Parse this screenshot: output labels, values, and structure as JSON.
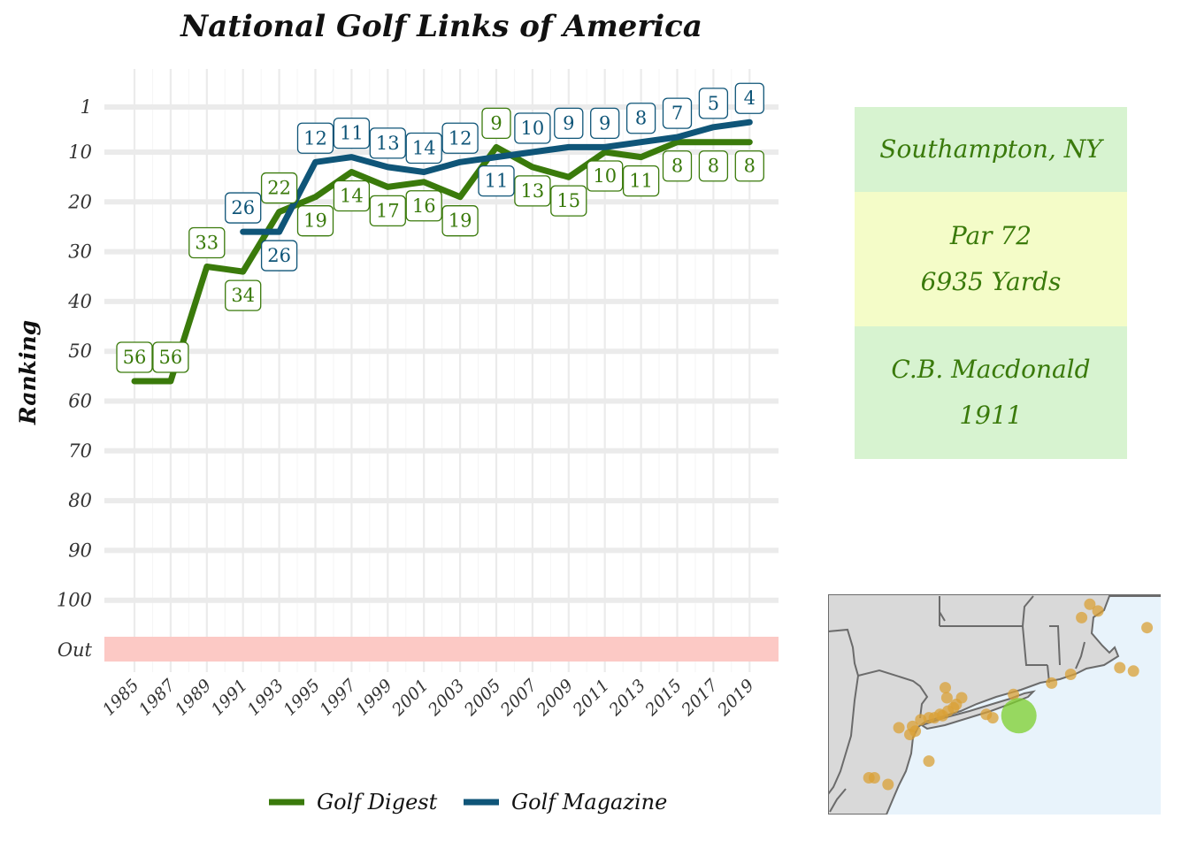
{
  "chart_data": {
    "type": "line",
    "title": "National Golf Links of America",
    "ylabel": "Ranking",
    "xlabel": "",
    "x_ticks": [
      "1985",
      "1987",
      "1989",
      "1991",
      "1993",
      "1995",
      "1997",
      "1999",
      "2001",
      "2003",
      "2005",
      "2007",
      "2009",
      "2011",
      "2013",
      "2015",
      "2017",
      "2019"
    ],
    "y_ticks": [
      1,
      10,
      20,
      30,
      40,
      50,
      60,
      70,
      80,
      90,
      100
    ],
    "y_out_label": "Out",
    "y_reversed": true,
    "grid": true,
    "legend_position": "bottom",
    "series": [
      {
        "name": "Golf Digest",
        "color": "#3a7a0b",
        "x": [
          1985,
          1987,
          1989,
          1991,
          1993,
          1995,
          1997,
          1999,
          2001,
          2003,
          2005,
          2007,
          2009,
          2011,
          2013,
          2015,
          2017,
          2019
        ],
        "values": [
          56,
          56,
          33,
          34,
          22,
          19,
          14,
          17,
          16,
          19,
          9,
          13,
          15,
          10,
          11,
          8,
          8,
          8
        ]
      },
      {
        "name": "Golf Magazine",
        "color": "#0f5578",
        "x": [
          1991,
          1993,
          1995,
          1997,
          1999,
          2001,
          2003,
          2005,
          2007,
          2009,
          2011,
          2013,
          2015,
          2017,
          2019
        ],
        "values": [
          26,
          26,
          12,
          11,
          13,
          14,
          12,
          11,
          10,
          9,
          9,
          8,
          7,
          5,
          4
        ]
      }
    ]
  },
  "info": {
    "location": "Southampton, NY",
    "par": "Par 72",
    "yards": "6935 Yards",
    "architect": "C.B. Macdonald",
    "year": "1911"
  },
  "colors": {
    "panel_green": "#d7f3d0",
    "panel_yellow": "#f4fcc8",
    "out_band": "#fcc9c5",
    "grid": "#ebebeb",
    "map_land": "#d9d9d9",
    "map_water": "#e8f3fb",
    "map_border": "#6b6b6b",
    "course_dot": "#d9a035",
    "highlight_dot": "#7ccf2c"
  },
  "map": {
    "course_points": [
      [
        -70.05,
        42.2
      ],
      [
        -70.3,
        41.55
      ],
      [
        -70.55,
        41.6
      ],
      [
        -70.95,
        42.45
      ],
      [
        -71.1,
        42.55
      ],
      [
        -71.25,
        42.35
      ],
      [
        -71.45,
        41.5
      ],
      [
        -71.8,
        41.37
      ],
      [
        -72.5,
        41.2
      ],
      [
        -73.45,
        41.15
      ],
      [
        -73.55,
        41.05
      ],
      [
        -73.6,
        41.0
      ],
      [
        -73.7,
        40.95
      ],
      [
        -73.72,
        41.15
      ],
      [
        -73.75,
        41.3
      ],
      [
        -73.8,
        40.88
      ],
      [
        -73.85,
        40.9
      ],
      [
        -73.95,
        40.85
      ],
      [
        -74.05,
        40.85
      ],
      [
        -74.2,
        40.82
      ],
      [
        -74.3,
        40.65
      ],
      [
        -74.35,
        40.72
      ],
      [
        -74.4,
        40.6
      ],
      [
        -74.6,
        40.7
      ],
      [
        -74.05,
        40.2
      ],
      [
        -75.15,
        39.95
      ],
      [
        -75.05,
        39.95
      ],
      [
        -74.8,
        39.85
      ],
      [
        -73.0,
        40.9
      ],
      [
        -72.88,
        40.85
      ]
    ],
    "highlight_point": [
      -72.4,
      40.88
    ]
  }
}
